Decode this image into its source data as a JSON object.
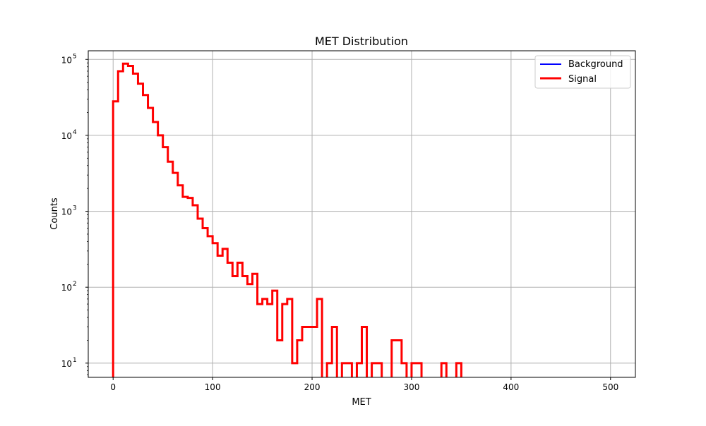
{
  "chart_data": {
    "type": "histogram",
    "title": "MET Distribution",
    "xlabel": "MET",
    "ylabel": "Counts",
    "xlim": [
      -25,
      525
    ],
    "ylim": [
      6.5,
      130000
    ],
    "yscale": "log",
    "grid": true,
    "legend_position": "top-right",
    "x_ticks": [
      0,
      100,
      200,
      300,
      400,
      500
    ],
    "x_tick_labels": [
      "0",
      "100",
      "200",
      "300",
      "400",
      "500"
    ],
    "y_ticks": [
      10,
      100,
      1000,
      10000,
      100000
    ],
    "y_tick_labels": [
      "10",
      "10",
      "10",
      "10",
      "10"
    ],
    "y_tick_exponents": [
      "1",
      "2",
      "3",
      "4",
      "5"
    ],
    "bin_edges": [
      0,
      5,
      10,
      15,
      20,
      25,
      30,
      35,
      40,
      45,
      50,
      55,
      60,
      65,
      70,
      75,
      80,
      85,
      90,
      95,
      100,
      105,
      110,
      115,
      120,
      125,
      130,
      135,
      140,
      145,
      150,
      155,
      160,
      165,
      170,
      175,
      180,
      185,
      190,
      195,
      200,
      205,
      210,
      215,
      220,
      225,
      230,
      235,
      240,
      245,
      250,
      255,
      260,
      265,
      270,
      275,
      280,
      285,
      290,
      295,
      300,
      305,
      310,
      315,
      320,
      325,
      330,
      335,
      340,
      345,
      350,
      355
    ],
    "series": [
      {
        "name": "Background",
        "color": "#0000ff",
        "line_width": 2,
        "counts": []
      },
      {
        "name": "Signal",
        "color": "#ff0000",
        "line_width": 3,
        "counts": [
          28000,
          70000,
          88000,
          82000,
          65000,
          48000,
          34000,
          23000,
          15000,
          10000,
          7000,
          4500,
          3200,
          2200,
          1550,
          1500,
          1200,
          800,
          600,
          470,
          380,
          260,
          320,
          210,
          140,
          210,
          140,
          110,
          150,
          60,
          70,
          60,
          90,
          20,
          60,
          70,
          10,
          20,
          30,
          30,
          30,
          70,
          0,
          10,
          30,
          0,
          10,
          10,
          0,
          10,
          30,
          0,
          10,
          10,
          0,
          0,
          20,
          20,
          10,
          0,
          10,
          10,
          0,
          0,
          0,
          0,
          10,
          0,
          0,
          10,
          0
        ]
      }
    ]
  }
}
